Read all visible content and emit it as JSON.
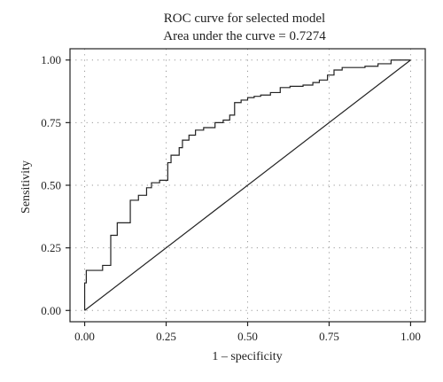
{
  "chart_data": {
    "type": "line",
    "title": "ROC curve for selected model",
    "subtitle": "Area under the curve = 0.7274",
    "xlabel": "1 – specificity",
    "ylabel": "Sensitivity",
    "xlim": [
      0,
      1
    ],
    "ylim": [
      0,
      1
    ],
    "xticks": [
      "0.00",
      "0.25",
      "0.50",
      "0.75",
      "1.00"
    ],
    "yticks": [
      "0.00",
      "0.25",
      "0.50",
      "0.75",
      "1.00"
    ],
    "grid": true,
    "reference_line": {
      "x": [
        0,
        1
      ],
      "y": [
        0,
        1
      ]
    },
    "series": [
      {
        "x": [
          0.0,
          0.0,
          0.005,
          0.005,
          0.055,
          0.055,
          0.08,
          0.08,
          0.1,
          0.1,
          0.14,
          0.14,
          0.165,
          0.165,
          0.19,
          0.19,
          0.205,
          0.205,
          0.23,
          0.23,
          0.255,
          0.255,
          0.265,
          0.265,
          0.29,
          0.29,
          0.3,
          0.3,
          0.32,
          0.32,
          0.34,
          0.34,
          0.365,
          0.365,
          0.4,
          0.4,
          0.425,
          0.425,
          0.445,
          0.445,
          0.46,
          0.46,
          0.48,
          0.48,
          0.5,
          0.5,
          0.52,
          0.52,
          0.54,
          0.54,
          0.57,
          0.57,
          0.6,
          0.6,
          0.63,
          0.63,
          0.67,
          0.67,
          0.7,
          0.7,
          0.72,
          0.72,
          0.745,
          0.745,
          0.765,
          0.765,
          0.79,
          0.79,
          0.86,
          0.86,
          0.9,
          0.9,
          0.94,
          0.94,
          1.0
        ],
        "y": [
          0.0,
          0.11,
          0.11,
          0.16,
          0.16,
          0.18,
          0.18,
          0.3,
          0.3,
          0.35,
          0.35,
          0.44,
          0.44,
          0.46,
          0.46,
          0.49,
          0.49,
          0.51,
          0.51,
          0.52,
          0.52,
          0.59,
          0.59,
          0.62,
          0.62,
          0.65,
          0.65,
          0.68,
          0.68,
          0.7,
          0.7,
          0.72,
          0.72,
          0.73,
          0.73,
          0.75,
          0.75,
          0.76,
          0.76,
          0.78,
          0.78,
          0.83,
          0.83,
          0.84,
          0.84,
          0.85,
          0.85,
          0.855,
          0.855,
          0.86,
          0.86,
          0.87,
          0.87,
          0.89,
          0.89,
          0.895,
          0.895,
          0.9,
          0.9,
          0.91,
          0.91,
          0.92,
          0.92,
          0.94,
          0.94,
          0.96,
          0.96,
          0.97,
          0.97,
          0.975,
          0.975,
          0.985,
          0.985,
          1.0,
          1.0
        ]
      }
    ]
  }
}
